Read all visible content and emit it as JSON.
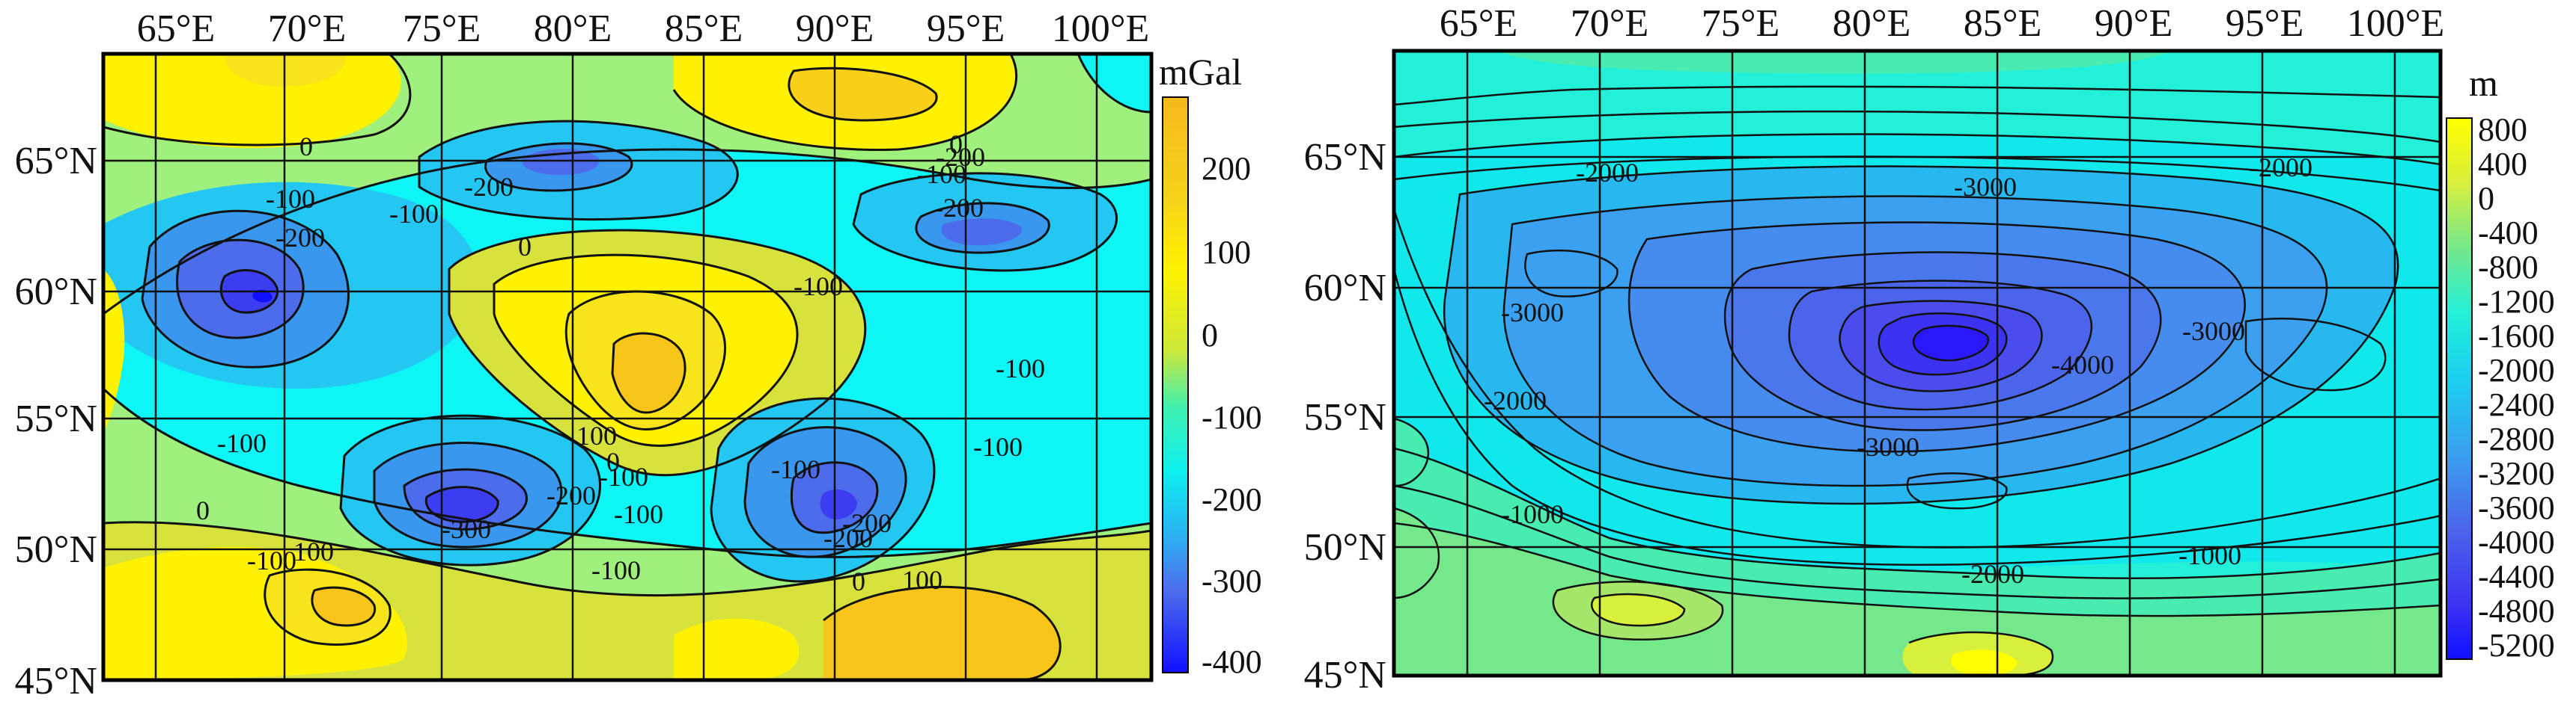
{
  "panels": [
    {
      "id": "gravity",
      "unit": "mGal",
      "lon_ticks": [
        "65°E",
        "70°E",
        "75°E",
        "80°E",
        "85°E",
        "90°E",
        "95°E",
        "100°E"
      ],
      "lat_ticks": [
        "65°N",
        "60°N",
        "55°N",
        "50°N",
        "45°N"
      ],
      "colorbar_ticks": [
        "200",
        "100",
        "0",
        "-100",
        "-200",
        "-300",
        "-400"
      ],
      "contour_labels": [
        "0",
        "-100",
        "-100",
        "-200",
        "-200",
        "0",
        "-100",
        "-100",
        "-200",
        "0",
        "-100",
        "-100",
        "-100",
        "-100",
        "-100",
        "100",
        "0",
        "-100",
        "-200",
        "-300",
        "-200",
        "0",
        "100",
        "-100",
        "100",
        "0",
        "-100",
        "-200",
        "-200"
      ],
      "colors": [
        "#fff200",
        "#f8c61a",
        "#d8e23c",
        "#9ff07c",
        "#3ff0b0",
        "#0df5f5",
        "#24c7f2",
        "#3a97ee",
        "#4d6cec",
        "#3c3cf0",
        "#1010ff"
      ]
    },
    {
      "id": "topography",
      "unit": "m",
      "lon_ticks": [
        "65°E",
        "70°E",
        "75°E",
        "80°E",
        "85°E",
        "90°E",
        "95°E",
        "100°E"
      ],
      "lat_ticks": [
        "65°N",
        "60°N",
        "55°N",
        "50°N",
        "45°N"
      ],
      "colorbar_ticks": [
        "800",
        "400",
        "0",
        "-400",
        "-800",
        "-1200",
        "-1600",
        "-2000",
        "-2400",
        "-2800",
        "-3200",
        "-3600",
        "-4000",
        "-4400",
        "-4800",
        "-5200"
      ],
      "contour_labels": [
        "-2000",
        "-3000",
        "-2000",
        "-3000",
        "-4000",
        "-3000",
        "-2000",
        "-3000",
        "-1000",
        "-2000",
        "-1000"
      ],
      "colors": [
        "#ffff00",
        "#d8ef3c",
        "#a6e66a",
        "#76e88c",
        "#48ecb0",
        "#22f0d8",
        "#10e8ec",
        "#1ad0f0",
        "#28b8f0",
        "#3aa0ef",
        "#468cee",
        "#4a78ec",
        "#4c64ea",
        "#4a4ced",
        "#3c32f2",
        "#2a18fa"
      ]
    }
  ]
}
